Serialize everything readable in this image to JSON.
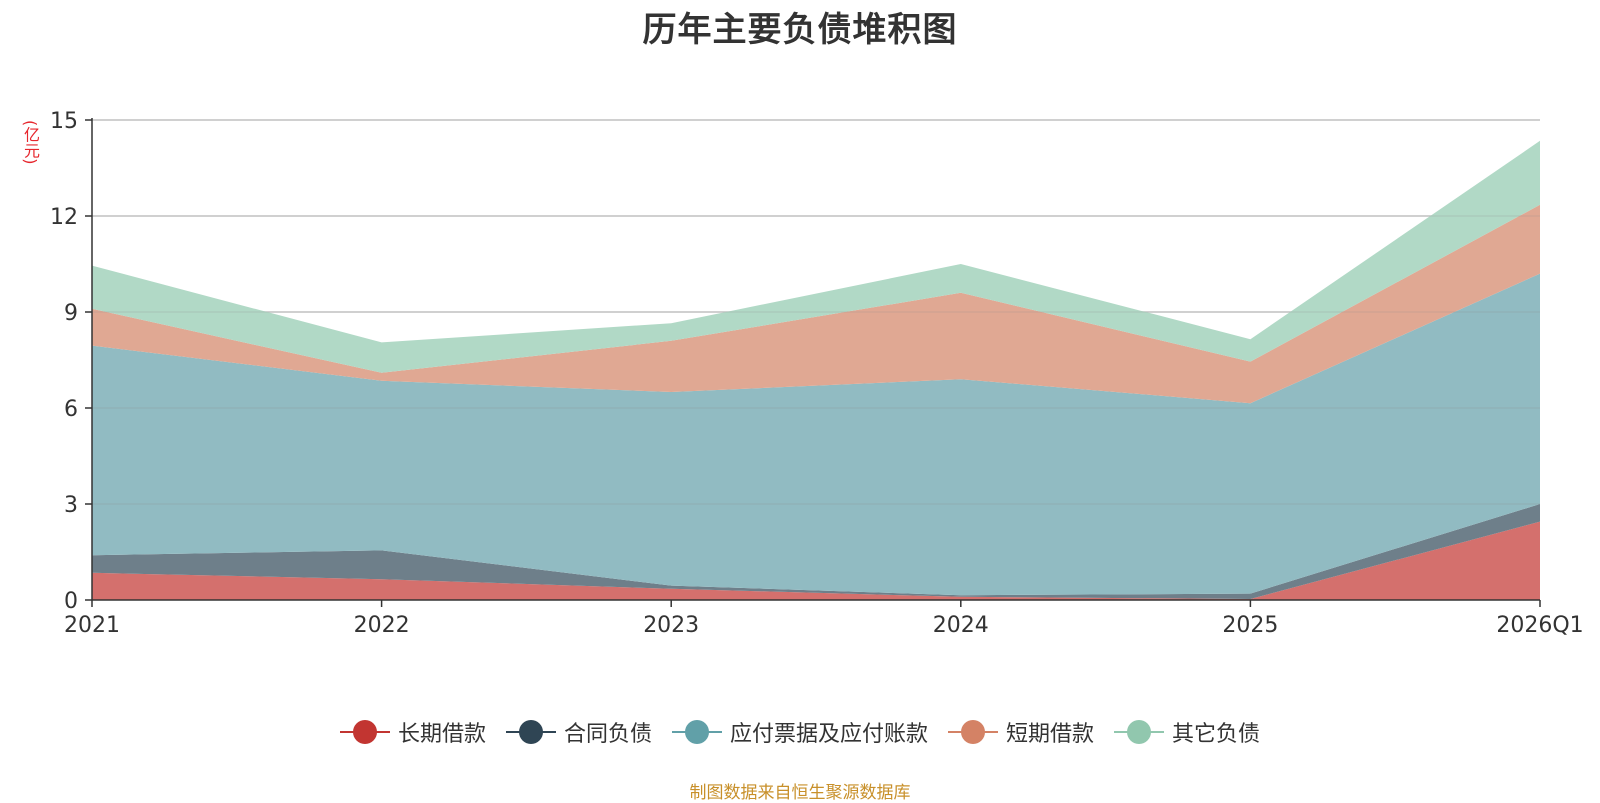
{
  "title": "历年主要负债堆积图",
  "unit_label": "(亿元)",
  "source_note": "制图数据来自恒生聚源数据库",
  "chart_data": {
    "type": "area",
    "stacked": true,
    "categories": [
      "2021",
      "2022",
      "2023",
      "2024",
      "2025",
      "2026Q1"
    ],
    "ylim": [
      0,
      15
    ],
    "yticks": [
      0,
      3,
      6,
      9,
      12,
      15
    ],
    "grid": true,
    "legend_position": "bottom",
    "series": [
      {
        "name": "长期借款",
        "color": "#c23531",
        "fill": "#d4706d",
        "values": [
          0.85,
          0.65,
          0.35,
          0.1,
          0.03,
          2.45
        ]
      },
      {
        "name": "合同负债",
        "color": "#2f4554",
        "fill": "#6e7f8a",
        "values": [
          0.55,
          0.9,
          0.1,
          0.05,
          0.17,
          0.55
        ]
      },
      {
        "name": "应付票据及应付账款",
        "color": "#61a0a8",
        "fill": "#91bbc2",
        "values": [
          6.55,
          5.3,
          6.05,
          6.75,
          5.95,
          7.2
        ]
      },
      {
        "name": "短期借款",
        "color": "#d48265",
        "fill": "#e0a893",
        "values": [
          1.15,
          0.25,
          1.6,
          2.7,
          1.3,
          2.15
        ]
      },
      {
        "name": "其它负债",
        "color": "#91c7ae",
        "fill": "#b1d9c6",
        "values": [
          1.35,
          0.95,
          0.55,
          0.9,
          0.7,
          2.0
        ]
      }
    ]
  }
}
